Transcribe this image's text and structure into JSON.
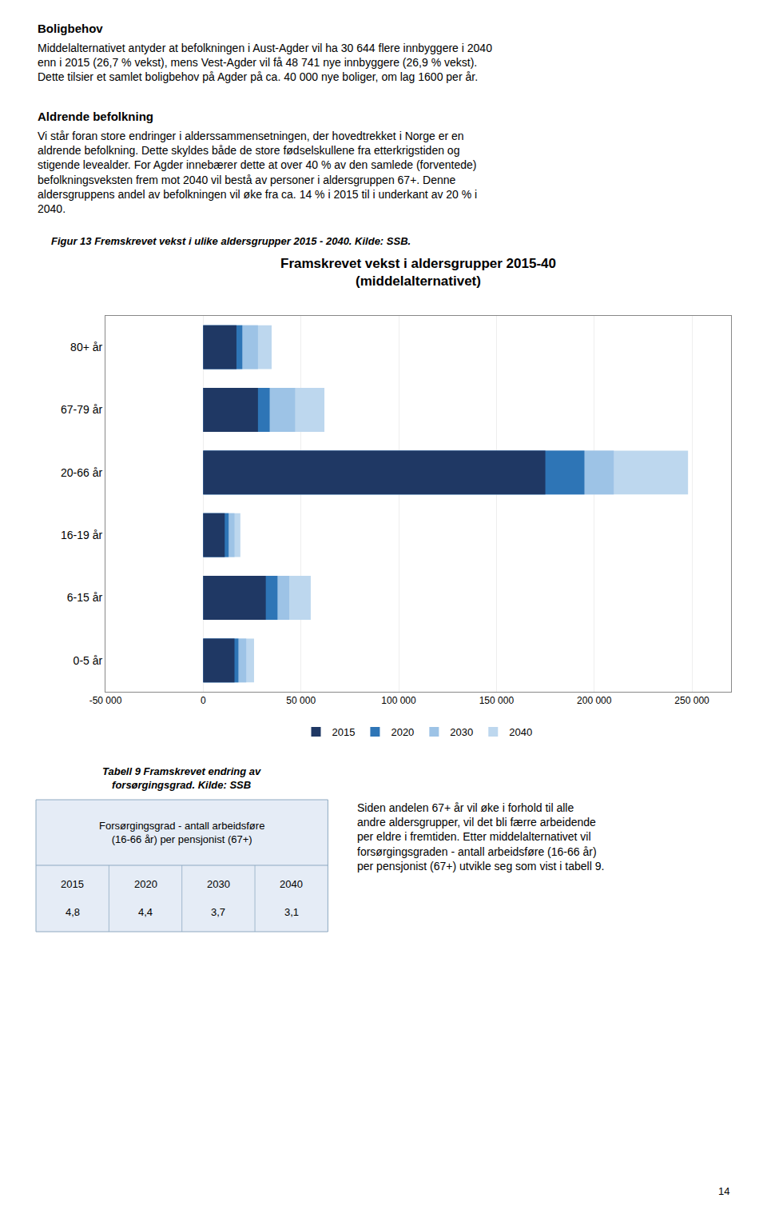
{
  "chart_data": [
    {
      "type": "bar",
      "orientation": "horizontal",
      "stacked": false,
      "title": "Framskrevet vekst i aldersgrupper 2015-40",
      "subtitle": "(middelalternativet)",
      "categories": [
        "80+ år",
        "67-79 år",
        "20-66 år",
        "16-19 år",
        "6-15 år",
        "0-5 år"
      ],
      "series": [
        {
          "name": "2015",
          "color": "#1F3864",
          "values": [
            17000,
            28000,
            175000,
            11000,
            32000,
            16000
          ]
        },
        {
          "name": "2020",
          "color": "#2E75B6",
          "values": [
            20000,
            34000,
            195000,
            13000,
            38000,
            18000
          ]
        },
        {
          "name": "2030",
          "color": "#9DC3E6",
          "values": [
            28000,
            47000,
            210000,
            16000,
            44000,
            22000
          ]
        },
        {
          "name": "2040",
          "color": "#BDD7EE",
          "values": [
            35000,
            62000,
            248000,
            19000,
            55000,
            26000
          ]
        }
      ],
      "xlim": [
        -50000,
        270000
      ],
      "xticks": [
        {
          "value": -50000,
          "label": "-50 000"
        },
        0,
        {
          "value": 50000,
          "label": "50 000"
        },
        {
          "value": 100000,
          "label": "100 000"
        },
        {
          "value": 150000,
          "label": "150 000"
        },
        {
          "value": 200000,
          "label": "200 000"
        },
        {
          "value": 250000,
          "label": "250 000"
        }
      ],
      "grid": true,
      "legend": "bottom",
      "annotations": [
        "Boligbehov",
        "Middelalternativet antyder at befolkningen i Aust-Agder vil ha 30 644 flere innbyggere i 2040\nenn i 2015 (26,7 % vekst), mens Vest-Agder vil få 48 741 nye innbyggere (26,9 % vekst).\nDette tilsier et samlet boligbehov på Agder på ca. 40 000 nye boliger, om lag 1600 per år.",
        "Aldrende befolkning",
        "Vi står foran store endringer i alderssammensetningen, der hovedtrekket i Norge er en\naldrende befolkning. Dette skyldes både de store fødselskullene fra etterkrigstiden og\nstigende levealder. For Agder innebærer dette at over 40 % av den samlede (forventede)\nbefolkningsveksten frem mot 2040 vil bestå av personer i aldersgruppen 67+. Denne\naldersgruppens andel av befolkningen vil øke fra ca. 14 % i 2015 til i underkant av 20 % i\n2040.",
        "Figur 13 Fremskrevet vekst i ulike aldersgrupper 2015 - 2040. Kilde: SSB.",
        "Siden andelen 67+ år vil øke i forhold til alle\nandre aldersgrupper, vil det bli færre arbeidende\nper eldre i fremtiden. Etter middelalternativet vil\nforsørgingsgraden - antall arbeidsføre (16-66 år)\nper pensjonist (67+) utvikle seg som vist i tabell 9.",
        "14"
      ]
    },
    {
      "type": "table",
      "title": "Tabell 9 Framskrevet endring av\nforsørgingsgrad. Kilde: SSB",
      "subtitle": "Forsørgingsgrad - antall arbeidsføre\n(16-66 år) per pensjonist (67+)",
      "categories": [
        "2015",
        "2020",
        "2030",
        "2040"
      ],
      "values": [
        4.8,
        4.4,
        3.7,
        3.1
      ],
      "value_labels": [
        "4,8",
        "4,4",
        "3,7",
        "3,1"
      ]
    }
  ]
}
